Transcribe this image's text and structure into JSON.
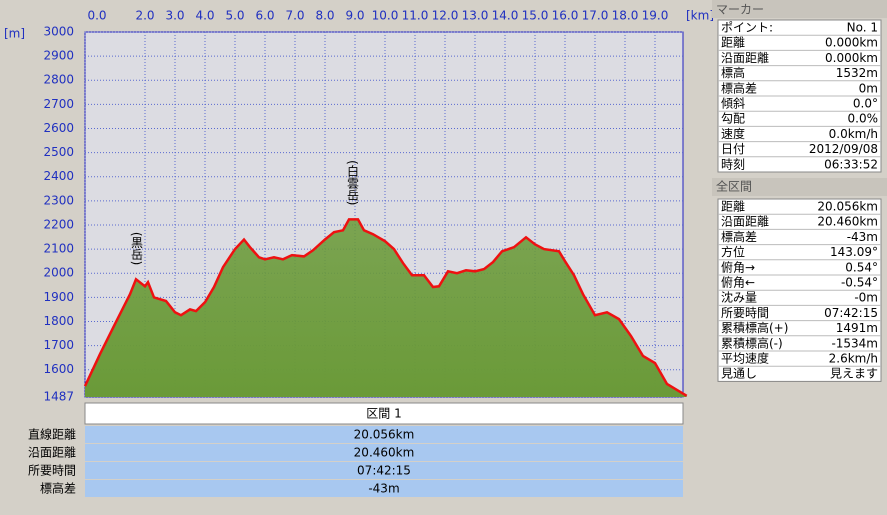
{
  "chart_data": {
    "type": "area",
    "y_label": "[m]",
    "x_label": "[km]",
    "x": [
      0,
      0.5,
      1.0,
      1.5,
      1.7,
      2.0,
      2.1,
      2.3,
      2.7,
      3.0,
      3.2,
      3.5,
      3.7,
      4.0,
      4.3,
      4.6,
      5.0,
      5.3,
      5.5,
      5.8,
      6.0,
      6.3,
      6.6,
      6.9,
      7.3,
      7.6,
      8.0,
      8.3,
      8.6,
      8.8,
      9.1,
      9.3,
      9.6,
      10.0,
      10.3,
      10.6,
      10.9,
      11.3,
      11.6,
      11.8,
      12.1,
      12.4,
      12.7,
      13.0,
      13.3,
      13.6,
      13.9,
      14.3,
      14.7,
      15.0,
      15.3,
      15.8,
      16.0,
      16.3,
      16.6,
      17.0,
      17.4,
      17.8,
      18.2,
      18.6,
      19.0,
      19.4,
      20.056
    ],
    "values": [
      1532,
      1665,
      1790,
      1913,
      1975,
      1946,
      1963,
      1900,
      1885,
      1838,
      1826,
      1850,
      1843,
      1880,
      1943,
      2025,
      2100,
      2140,
      2108,
      2066,
      2058,
      2066,
      2058,
      2075,
      2070,
      2095,
      2140,
      2170,
      2178,
      2223,
      2223,
      2178,
      2162,
      2133,
      2100,
      2042,
      1992,
      1992,
      1943,
      1946,
      2008,
      2000,
      2012,
      2008,
      2017,
      2046,
      2091,
      2108,
      2149,
      2120,
      2100,
      2091,
      2050,
      1992,
      1913,
      1826,
      1838,
      1810,
      1740,
      1657,
      1628,
      1541,
      1492
    ],
    "color": "#ee1111",
    "fill": "#6a9a38",
    "xlim": [
      0,
      20
    ],
    "xticks": [
      {
        "value": 0,
        "label": "0.0"
      },
      {
        "value": 2,
        "label": "2.0"
      },
      {
        "value": 3,
        "label": "3.0"
      },
      {
        "value": 4,
        "label": "4.0"
      },
      {
        "value": 5,
        "label": "5.0"
      },
      {
        "value": 6,
        "label": "6.0"
      },
      {
        "value": 7,
        "label": "7.0"
      },
      {
        "value": 8,
        "label": "8.0"
      },
      {
        "value": 9,
        "label": "9.0"
      },
      {
        "value": 10,
        "label": "10.0"
      },
      {
        "value": 11,
        "label": "11.0"
      },
      {
        "value": 12,
        "label": "12.0"
      },
      {
        "value": 13,
        "label": "13.0"
      },
      {
        "value": 14,
        "label": "14.0"
      },
      {
        "value": 15,
        "label": "15.0"
      },
      {
        "value": 16,
        "label": "16.0"
      },
      {
        "value": 17,
        "label": "17.0"
      },
      {
        "value": 18,
        "label": "18.0"
      },
      {
        "value": 19,
        "label": "19.0"
      }
    ],
    "ylim": [
      1487,
      3000
    ],
    "yticks": [
      1487,
      1600,
      1700,
      1800,
      1900,
      2000,
      2100,
      2200,
      2300,
      2400,
      2500,
      2600,
      2700,
      2800,
      2900,
      3000
    ],
    "grid": true,
    "annotations": [
      {
        "text": "(黒岳)",
        "x": 1.7
      },
      {
        "text": "(白雲岳)",
        "x": 8.9
      }
    ]
  },
  "section_table": {
    "header": "区間 1",
    "rows": [
      [
        "直線距離",
        "20.056km"
      ],
      [
        "沿面距離",
        "20.460km"
      ],
      [
        "所要時間",
        "07:42:15"
      ],
      [
        "標高差",
        "-43m"
      ]
    ]
  },
  "marker_panel": {
    "title": "マーカー",
    "rows": [
      [
        "ポイント:",
        "No. 1"
      ],
      [
        "距離",
        "0.000km"
      ],
      [
        "沿面距離",
        "0.000km"
      ],
      [
        "標高",
        "1532m"
      ],
      [
        "標高差",
        "0m"
      ],
      [
        "傾斜",
        "0.0°"
      ],
      [
        "勾配",
        "0.0%"
      ],
      [
        "速度",
        "0.0km/h"
      ],
      [
        "日付",
        "2012/09/08"
      ],
      [
        "時刻",
        "06:33:52"
      ]
    ]
  },
  "total_panel": {
    "title": "全区間",
    "rows": [
      [
        "距離",
        "20.056km"
      ],
      [
        "沿面距離",
        "20.460km"
      ],
      [
        "標高差",
        "-43m"
      ],
      [
        "方位",
        "143.09°"
      ],
      [
        "俯角→",
        "0.54°"
      ],
      [
        "俯角←",
        "-0.54°"
      ],
      [
        "沈み量",
        "-0m"
      ],
      [
        "所要時間",
        "07:42:15"
      ],
      [
        "累積標高(+)",
        "1491m"
      ],
      [
        "累積標高(-)",
        "-1534m"
      ],
      [
        "平均速度",
        "2.6km/h"
      ],
      [
        "見通し",
        "見えます"
      ]
    ]
  }
}
